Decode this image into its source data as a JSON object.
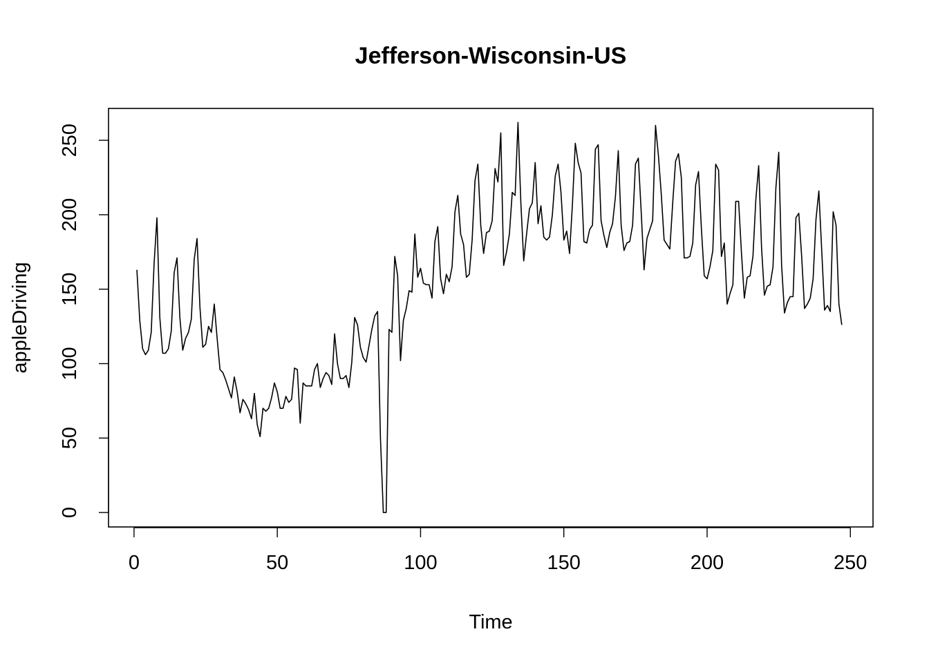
{
  "chart_data": {
    "type": "line",
    "title": "Jefferson-Wisconsin-US",
    "xlabel": "Time",
    "ylabel": "appleDriving",
    "xlim": [
      -8.9,
      257.9
    ],
    "ylim": [
      -9.7,
      271.4
    ],
    "x_ticks": [
      0,
      50,
      100,
      150,
      200,
      250
    ],
    "y_ticks": [
      0,
      50,
      100,
      150,
      200,
      250
    ],
    "grid": false,
    "line_color": "#000000",
    "x_start": 1,
    "series": [
      {
        "values": [
          163,
          129,
          110,
          106,
          109,
          121,
          167,
          198,
          131,
          107,
          107,
          110,
          122,
          161,
          171,
          131,
          109,
          117,
          121,
          130,
          170,
          184,
          138,
          111,
          113,
          125,
          121,
          140,
          117,
          96,
          94,
          89,
          83,
          77,
          91,
          81,
          67,
          76,
          73,
          69,
          63,
          80,
          59,
          51,
          70,
          68,
          70,
          77,
          87,
          81,
          70,
          70,
          78,
          74,
          76,
          97,
          96,
          60,
          87,
          85,
          85,
          85,
          96,
          100,
          84,
          90,
          94,
          92,
          86,
          120,
          100,
          90,
          90,
          92,
          84,
          101,
          131,
          126,
          111,
          104,
          101,
          112,
          123,
          132,
          135,
          50,
          0,
          0,
          123,
          121,
          172,
          159,
          102,
          129,
          137,
          149,
          148,
          187,
          158,
          164,
          154,
          153,
          153,
          144,
          182,
          192,
          157,
          147,
          160,
          155,
          165,
          202,
          213,
          187,
          180,
          158,
          160,
          183,
          223,
          234,
          193,
          174,
          188,
          189,
          196,
          231,
          222,
          255,
          166,
          175,
          187,
          215,
          213,
          262,
          208,
          169,
          187,
          204,
          208,
          235,
          194,
          206,
          185,
          183,
          185,
          200,
          226,
          234,
          215,
          183,
          189,
          174,
          207,
          248,
          235,
          228,
          182,
          181,
          190,
          193,
          244,
          247,
          196,
          186,
          178,
          188,
          194,
          212,
          243,
          193,
          176,
          181,
          182,
          193,
          234,
          238,
          202,
          163,
          184,
          190,
          196,
          260,
          240,
          214,
          183,
          180,
          177,
          208,
          236,
          241,
          225,
          171,
          171,
          172,
          181,
          220,
          229,
          191,
          159,
          157,
          165,
          176,
          234,
          230,
          172,
          181,
          140,
          147,
          153,
          209,
          209,
          174,
          144,
          158,
          159,
          172,
          210,
          233,
          178,
          146,
          152,
          153,
          165,
          218,
          242,
          166,
          134,
          141,
          145,
          145,
          198,
          201,
          172,
          137,
          140,
          144,
          157,
          197,
          216,
          176,
          136,
          139,
          135,
          202,
          193,
          140,
          126
        ]
      }
    ]
  }
}
